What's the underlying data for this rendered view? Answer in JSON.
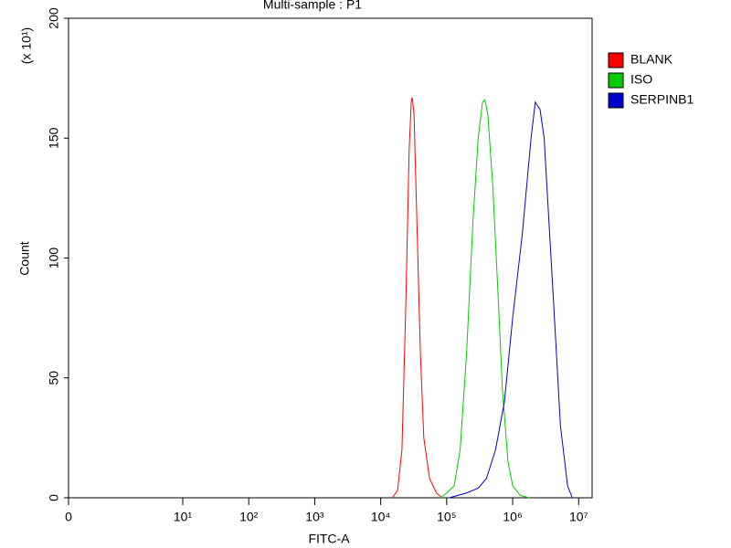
{
  "chart_data": {
    "type": "line",
    "title": "Multi-sample : P1",
    "y_multiplier": "(x 10¹)",
    "xlabel": "FITC-A",
    "ylabel": "Count",
    "xscale": "biexponential",
    "xlim": [
      0,
      16000000
    ],
    "xticks": [
      {
        "value": 0,
        "label": "0"
      },
      {
        "value": 10,
        "label": "10¹"
      },
      {
        "value": 100,
        "label": "10²"
      },
      {
        "value": 1000,
        "label": "10³"
      },
      {
        "value": 10000,
        "label": "10⁴"
      },
      {
        "value": 100000,
        "label": "10⁵"
      },
      {
        "value": 1000000,
        "label": "10⁶"
      },
      {
        "value": 10000000,
        "label": "10⁷"
      }
    ],
    "ylim": [
      0,
      200
    ],
    "yticks": [
      0,
      50,
      100,
      150,
      200
    ],
    "legend": "right",
    "series": [
      {
        "name": "BLANK",
        "color": "#ff0000",
        "x": [
          15000,
          18000,
          21000,
          24000,
          27000,
          29000,
          30000,
          32000,
          35000,
          40000,
          45000,
          55000,
          70000,
          85000
        ],
        "values": [
          0,
          3,
          20,
          80,
          145,
          165,
          167,
          160,
          120,
          60,
          25,
          8,
          2,
          0
        ]
      },
      {
        "name": "ISO",
        "color": "#00cc00",
        "x": [
          80000,
          100000,
          130000,
          160000,
          200000,
          250000,
          300000,
          350000,
          380000,
          420000,
          500000,
          600000,
          700000,
          850000,
          1000000,
          1300000,
          1800000
        ],
        "values": [
          0,
          2,
          5,
          20,
          60,
          115,
          150,
          165,
          166,
          160,
          130,
          85,
          45,
          15,
          5,
          1,
          0
        ]
      },
      {
        "name": "SERPINB1",
        "color": "#0000cc",
        "x": [
          110000,
          200000,
          300000,
          400000,
          550000,
          750000,
          1000000,
          1400000,
          1900000,
          2200000,
          2600000,
          3000000,
          4200000,
          5300000,
          6800000,
          8000000
        ],
        "values": [
          0,
          2,
          4,
          8,
          20,
          40,
          75,
          110,
          150,
          165,
          162,
          150,
          80,
          30,
          5,
          0
        ]
      }
    ]
  }
}
